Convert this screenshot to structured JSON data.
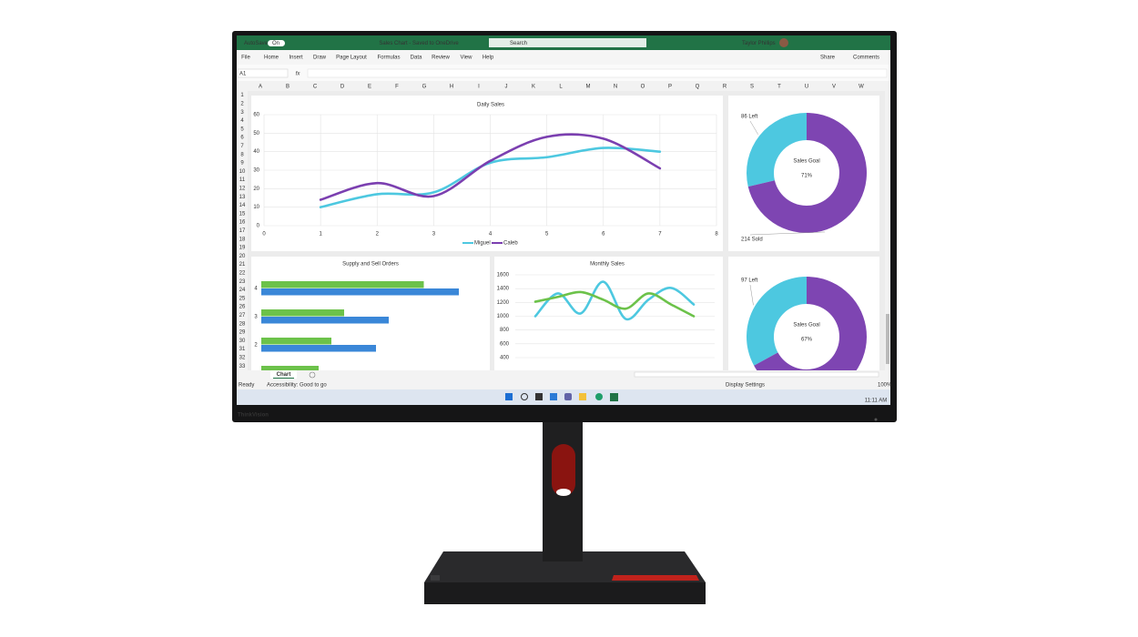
{
  "window": {
    "autosave": "AutoSave",
    "toggle": "On",
    "title": "Sales Chart - Saved to OneDrive",
    "search": "Search",
    "user": "Taylor Phillips",
    "menu": [
      "File",
      "Home",
      "Insert",
      "Draw",
      "Page Layout",
      "Formulas",
      "Data",
      "Review",
      "View",
      "Help"
    ],
    "share": "Share",
    "comments": "Comments",
    "name_box": "A1",
    "fx": "fx",
    "columns": [
      "A",
      "B",
      "C",
      "D",
      "E",
      "F",
      "G",
      "H",
      "I",
      "J",
      "K",
      "L",
      "M",
      "N",
      "O",
      "P",
      "Q",
      "R",
      "S",
      "T",
      "U",
      "V",
      "W"
    ],
    "rows": [
      1,
      2,
      3,
      4,
      5,
      6,
      7,
      8,
      9,
      10,
      11,
      12,
      13,
      14,
      15,
      16,
      17,
      18,
      19,
      20,
      21,
      22,
      23,
      24,
      25,
      26,
      27,
      28,
      29,
      30,
      31,
      32,
      33
    ],
    "sheet_tab": "Chart",
    "status": "Ready",
    "accessibility": "Accessibility: Good to go",
    "display_settings": "Display Settings",
    "zoom": "100%",
    "clock": "11:11 AM",
    "brand": "ThinkVision"
  },
  "chart_data": [
    {
      "type": "line",
      "title": "Daily Sales",
      "x": [
        1,
        2,
        3,
        4,
        5,
        6,
        7
      ],
      "xlim": [
        0,
        8
      ],
      "xticks": [
        0,
        1,
        2,
        3,
        4,
        5,
        6,
        7,
        8
      ],
      "ylim": [
        0,
        60
      ],
      "yticks": [
        0,
        10,
        20,
        30,
        40,
        50,
        60
      ],
      "grid": true,
      "smooth": true,
      "legend": "bottom",
      "series": [
        {
          "name": "Miguel",
          "color": "#4dc8e0",
          "values": [
            10,
            17,
            18,
            34,
            37,
            42,
            40
          ]
        },
        {
          "name": "Caleb",
          "color": "#7b3fb0",
          "values": [
            14,
            23,
            16,
            35,
            48,
            47,
            31
          ]
        }
      ]
    },
    {
      "type": "hbar",
      "title": "Supply and Sell Orders",
      "categories": [
        null,
        "2",
        "3",
        "4"
      ],
      "xlim": [
        0,
        64
      ],
      "series": [
        {
          "color": "#6cc24a",
          "values": [
            18,
            22,
            26,
            51
          ]
        },
        {
          "color": "#3a87d8",
          "values": [
            null,
            36,
            40,
            62
          ]
        }
      ]
    },
    {
      "type": "line",
      "title": "Monthly Sales",
      "x": [
        1,
        2,
        3,
        4,
        5,
        6,
        7,
        8
      ],
      "xlim": [
        1,
        8
      ],
      "ylim": [
        400,
        1600
      ],
      "yticks": [
        400,
        600,
        800,
        1000,
        1200,
        1400,
        1600
      ],
      "grid": true,
      "smooth": true,
      "series": [
        {
          "color": "#4dc8e0",
          "values": [
            1000,
            1330,
            1040,
            1500,
            960,
            1240,
            1410,
            1170
          ]
        },
        {
          "color": "#6cc24a",
          "values": [
            1210,
            1280,
            1350,
            1240,
            1110,
            1330,
            1170,
            1000
          ]
        }
      ]
    },
    {
      "type": "donut",
      "title": "Sales Goal",
      "center": "71%",
      "values": [
        86,
        214
      ],
      "value_labels": [
        "86 Left",
        "214 Sold"
      ],
      "colors": [
        "#4dc8e0",
        "#7e45b2"
      ]
    },
    {
      "type": "donut",
      "title": "Sales Goal",
      "center": "67%",
      "values": [
        97,
        197
      ],
      "value_labels": [
        "97 Left",
        null
      ],
      "colors": [
        "#4dc8e0",
        "#7e45b2"
      ]
    }
  ]
}
